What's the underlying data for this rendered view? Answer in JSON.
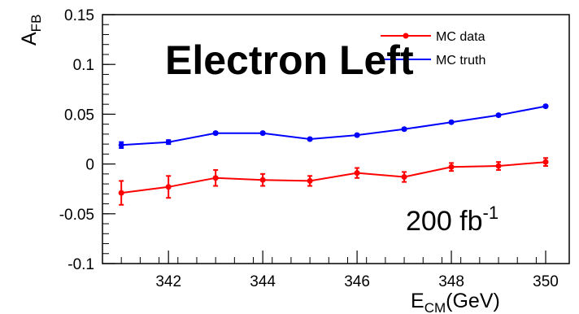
{
  "chart_data": {
    "type": "line",
    "title": "Electron Left",
    "annotation": {
      "text": "200 fb",
      "superscript": "-1"
    },
    "ylabel": {
      "main": "A",
      "sub": "FB"
    },
    "xlabel": {
      "main": "E",
      "sub": "CM",
      "unit": "(GeV)"
    },
    "xlim": [
      340.6,
      350.5
    ],
    "ylim": [
      -0.1,
      0.15
    ],
    "xticks": [
      342,
      344,
      346,
      348,
      350
    ],
    "xtick_labels": [
      "342",
      "344",
      "346",
      "348",
      "350"
    ],
    "yticks": [
      -0.1,
      -0.05,
      0,
      0.05,
      0.1,
      0.15
    ],
    "ytick_labels": [
      "-0.1",
      "-0.05",
      "0",
      "0.05",
      "0.1",
      "0.15"
    ],
    "grid": false,
    "legend_position": "top-right",
    "x": [
      341,
      342,
      343,
      344,
      345,
      346,
      347,
      348,
      349,
      350
    ],
    "series": [
      {
        "name": "MC data",
        "color": "#ff0000",
        "values": [
          -0.029,
          -0.023,
          -0.014,
          -0.016,
          -0.017,
          -0.009,
          -0.013,
          -0.003,
          -0.002,
          0.002
        ],
        "errors": [
          0.012,
          0.011,
          0.008,
          0.006,
          0.005,
          0.005,
          0.005,
          0.004,
          0.004,
          0.004
        ]
      },
      {
        "name": "MC truth",
        "color": "#0000ff",
        "values": [
          0.019,
          0.022,
          0.031,
          0.031,
          0.025,
          0.029,
          0.035,
          0.042,
          0.049,
          0.058
        ],
        "errors": [
          0.003,
          0.002,
          0.001,
          0.001,
          0.001,
          0.001,
          0.001,
          0.001,
          0.001,
          0.001
        ]
      }
    ]
  }
}
